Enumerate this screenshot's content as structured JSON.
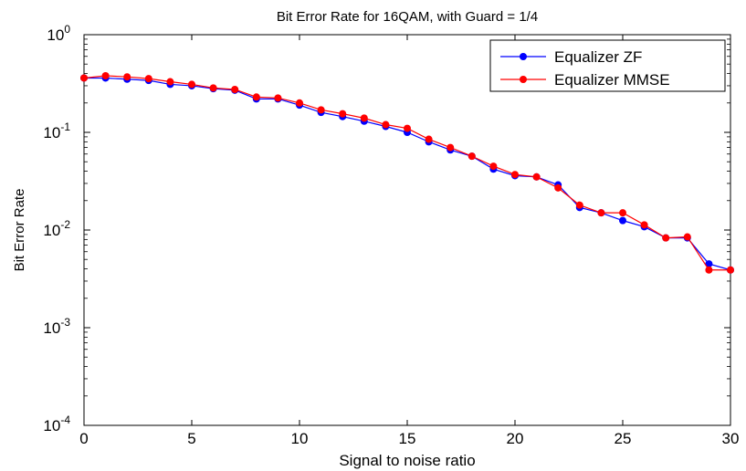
{
  "chart_data": {
    "type": "line",
    "title": "Bit Error Rate for 16QAM, with Guard = 1/4",
    "xlabel": "Signal to noise ratio",
    "ylabel": "Bit Error Rate",
    "xlim": [
      0,
      30
    ],
    "ylim": [
      0.0001,
      1
    ],
    "yscale": "log",
    "grid": false,
    "legend_position": "top-right",
    "x_ticks": [
      "0",
      "5",
      "10",
      "15",
      "20",
      "25",
      "30"
    ],
    "y_tick_bases": [
      "10",
      "10",
      "10",
      "10",
      "10"
    ],
    "y_tick_exponents": [
      "-4",
      "-3",
      "-2",
      "-1",
      "0"
    ],
    "x": [
      0,
      1,
      2,
      3,
      4,
      5,
      6,
      7,
      8,
      9,
      10,
      11,
      12,
      13,
      14,
      15,
      16,
      17,
      18,
      19,
      20,
      21,
      22,
      23,
      24,
      25,
      26,
      27,
      28,
      29,
      30
    ],
    "series": [
      {
        "name": "Equalizer ZF",
        "color": "#0000ff",
        "values": [
          0.36,
          0.36,
          0.35,
          0.34,
          0.31,
          0.3,
          0.28,
          0.27,
          0.22,
          0.22,
          0.19,
          0.16,
          0.145,
          0.13,
          0.115,
          0.1,
          0.08,
          0.066,
          0.057,
          0.042,
          0.036,
          0.035,
          0.029,
          0.017,
          0.015,
          0.0125,
          0.0108,
          0.0083,
          0.0083,
          0.0045,
          0.0039
        ]
      },
      {
        "name": "Equalizer MMSE",
        "color": "#ff0000",
        "values": [
          0.36,
          0.38,
          0.37,
          0.355,
          0.33,
          0.31,
          0.285,
          0.275,
          0.23,
          0.225,
          0.2,
          0.17,
          0.155,
          0.14,
          0.12,
          0.11,
          0.085,
          0.07,
          0.057,
          0.045,
          0.037,
          0.035,
          0.027,
          0.018,
          0.015,
          0.015,
          0.0113,
          0.0083,
          0.0085,
          0.0039,
          0.0039
        ]
      }
    ]
  }
}
